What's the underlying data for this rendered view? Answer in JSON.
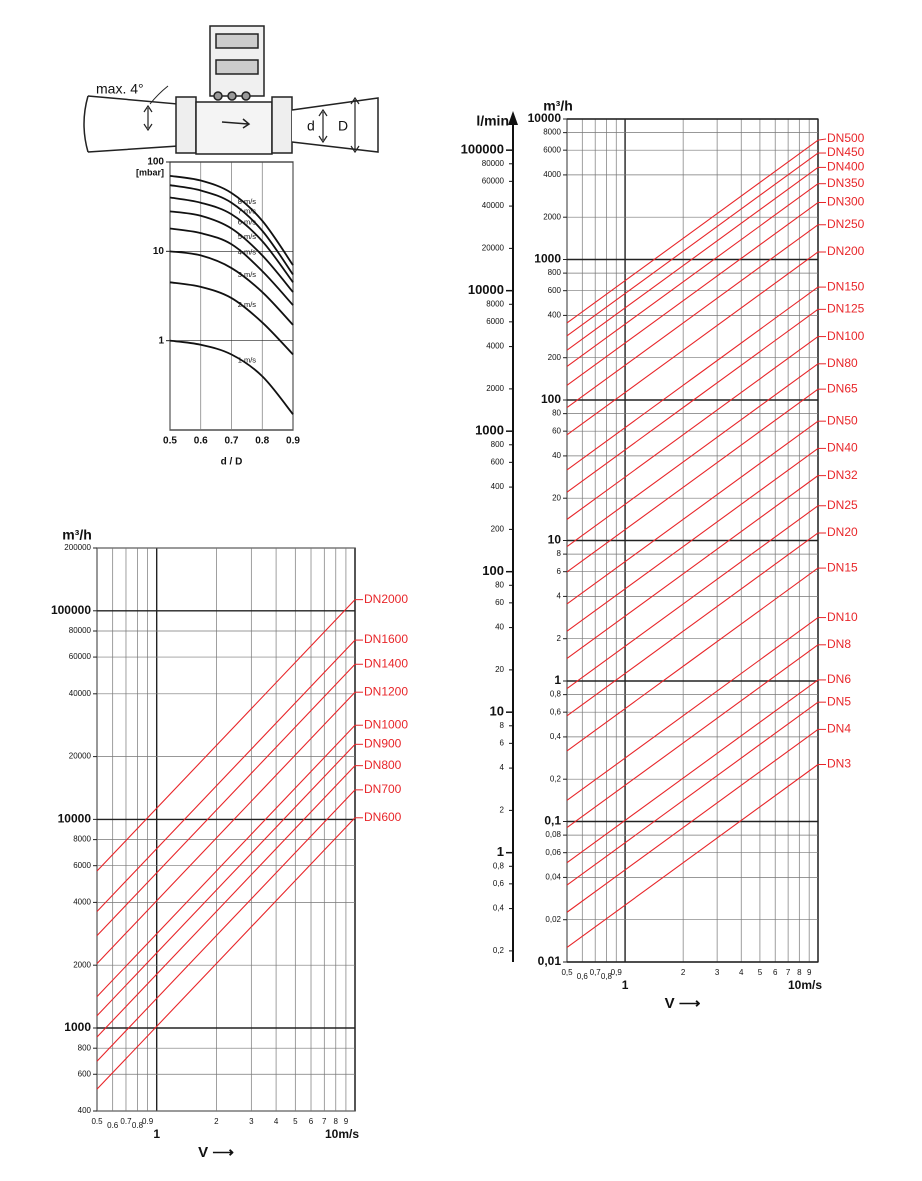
{
  "diagram": {
    "angle_label": "max. 4°",
    "inner_diameter_label": "d",
    "outer_diameter_label": "D"
  },
  "chart_data": [
    {
      "type": "line",
      "ylabel": "[mbar]",
      "xlabel": "d / D",
      "log_y": true,
      "grid": true,
      "xlim": [
        0.5,
        0.9
      ],
      "xticks": [
        0.5,
        0.6,
        0.7,
        0.8,
        0.9
      ],
      "ylim": [
        0.1,
        100
      ],
      "yticks": [
        100,
        10,
        1
      ],
      "x": [
        0.5,
        0.6,
        0.7,
        0.8,
        0.9
      ],
      "series": [
        {
          "name": "8 m/s",
          "color": "#111111",
          "values": [
            70,
            62,
            45,
            22,
            7
          ]
        },
        {
          "name": "7 m/s",
          "color": "#111111",
          "values": [
            55,
            48,
            35,
            17,
            5.5
          ]
        },
        {
          "name": "6 m/s",
          "color": "#111111",
          "values": [
            40,
            35,
            26,
            13,
            4.5
          ]
        },
        {
          "name": "5 m/s",
          "color": "#111111",
          "values": [
            28,
            25,
            18,
            9,
            3.5
          ]
        },
        {
          "name": "4 m/s",
          "color": "#111111",
          "values": [
            18,
            16,
            12,
            6,
            2.5
          ]
        },
        {
          "name": "3 m/s",
          "color": "#111111",
          "values": [
            10,
            9,
            6.5,
            3.5,
            1.5
          ]
        },
        {
          "name": "2 m/s",
          "color": "#111111",
          "values": [
            4.5,
            4,
            3,
            1.6,
            0.7
          ]
        },
        {
          "name": "1 m/s",
          "color": "#111111",
          "values": [
            1,
            0.9,
            0.7,
            0.4,
            0.15
          ]
        }
      ]
    },
    {
      "type": "line",
      "ylabel": "m³/h",
      "xlabel": "V ⟶",
      "log_x": true,
      "log_y": true,
      "grid": true,
      "xlim": [
        0.5,
        10
      ],
      "xticks": [
        0.5,
        0.6,
        0.7,
        0.8,
        0.9,
        1,
        2,
        3,
        4,
        5,
        6,
        7,
        8,
        9,
        {
          "value": 10,
          "label": "10m/s"
        }
      ],
      "ylim": [
        400,
        200000
      ],
      "yticks": [
        200000,
        100000,
        80000,
        60000,
        40000,
        20000,
        10000,
        8000,
        6000,
        4000,
        2000,
        1000,
        800,
        600,
        400
      ],
      "x": [
        0.5,
        10
      ],
      "series": [
        {
          "name": "DN2000",
          "color": "#e8262a",
          "values": [
            5655,
            113097
          ]
        },
        {
          "name": "DN1600",
          "color": "#e8262a",
          "values": [
            3619,
            72382
          ]
        },
        {
          "name": "DN1400",
          "color": "#e8262a",
          "values": [
            2771,
            55418
          ]
        },
        {
          "name": "DN1200",
          "color": "#e8262a",
          "values": [
            2036,
            40715
          ]
        },
        {
          "name": "DN1000",
          "color": "#e8262a",
          "values": [
            1414,
            28274
          ]
        },
        {
          "name": "DN900",
          "color": "#e8262a",
          "values": [
            1145,
            22902
          ]
        },
        {
          "name": "DN800",
          "color": "#e8262a",
          "values": [
            905,
            18096
          ]
        },
        {
          "name": "DN700",
          "color": "#e8262a",
          "values": [
            693,
            13854
          ]
        },
        {
          "name": "DN600",
          "color": "#e8262a",
          "values": [
            509,
            10179
          ]
        }
      ]
    },
    {
      "type": "line",
      "ylabel": "m³/h",
      "y2label": "l/min",
      "xlabel": "V ⟶",
      "log_x": true,
      "log_y": true,
      "grid": true,
      "xlim": [
        0.5,
        10
      ],
      "xticks": [
        {
          "value": 0.5,
          "label": "0,5"
        },
        {
          "value": 0.6,
          "label": "0,6"
        },
        {
          "value": 0.7,
          "label": "0,7"
        },
        {
          "value": 0.8,
          "label": "0,8"
        },
        {
          "value": 0.9,
          "label": "0,9"
        },
        1,
        2,
        3,
        4,
        5,
        6,
        7,
        8,
        9,
        {
          "value": 10,
          "label": "10m/s"
        }
      ],
      "ylim": [
        0.01,
        10000
      ],
      "yticks": [
        10000,
        8000,
        6000,
        4000,
        2000,
        1000,
        800,
        600,
        400,
        200,
        100,
        80,
        60,
        40,
        20,
        10,
        8,
        6,
        4,
        2,
        1,
        {
          "value": 0.8,
          "label": "0,8"
        },
        {
          "value": 0.6,
          "label": "0,6"
        },
        {
          "value": 0.4,
          "label": "0,4"
        },
        {
          "value": 0.2,
          "label": "0,2"
        },
        {
          "value": 0.1,
          "label": "0,1"
        },
        {
          "value": 0.08,
          "label": "0,08"
        },
        {
          "value": 0.06,
          "label": "0,06"
        },
        {
          "value": 0.04,
          "label": "0,04"
        },
        {
          "value": 0.02,
          "label": "0,02"
        },
        {
          "value": 0.01,
          "label": "0,01"
        }
      ],
      "y2lim": [
        0.1667,
        166667
      ],
      "y2ticks": [
        100000,
        80000,
        60000,
        40000,
        20000,
        10000,
        8000,
        6000,
        4000,
        2000,
        1000,
        800,
        600,
        400,
        200,
        100,
        80,
        60,
        40,
        20,
        10,
        8,
        6,
        4,
        2,
        1,
        {
          "value": 0.8,
          "label": "0,8"
        },
        {
          "value": 0.6,
          "label": "0,6"
        },
        {
          "value": 0.4,
          "label": "0,4"
        },
        {
          "value": 0.2,
          "label": "0,2"
        }
      ],
      "x": [
        0.5,
        10
      ],
      "series": [
        {
          "name": "DN500",
          "color": "#e8262a",
          "values": [
            353.43,
            7068.6
          ]
        },
        {
          "name": "DN450",
          "color": "#e8262a",
          "values": [
            286.28,
            5725.6
          ]
        },
        {
          "name": "DN400",
          "color": "#e8262a",
          "values": [
            226.19,
            4523.9
          ]
        },
        {
          "name": "DN350",
          "color": "#e8262a",
          "values": [
            173.18,
            3463.6
          ]
        },
        {
          "name": "DN300",
          "color": "#e8262a",
          "values": [
            127.23,
            2544.7
          ]
        },
        {
          "name": "DN250",
          "color": "#e8262a",
          "values": [
            88.36,
            1767.1
          ]
        },
        {
          "name": "DN200",
          "color": "#e8262a",
          "values": [
            56.55,
            1131
          ]
        },
        {
          "name": "DN150",
          "color": "#e8262a",
          "values": [
            31.809,
            636.17
          ]
        },
        {
          "name": "DN125",
          "color": "#e8262a",
          "values": [
            22.089,
            441.79
          ]
        },
        {
          "name": "DN100",
          "color": "#e8262a",
          "values": [
            14.137,
            282.74
          ]
        },
        {
          "name": "DN80",
          "color": "#e8262a",
          "values": [
            9.048,
            180.96
          ]
        },
        {
          "name": "DN65",
          "color": "#e8262a",
          "values": [
            5.973,
            119.46
          ]
        },
        {
          "name": "DN50",
          "color": "#e8262a",
          "values": [
            3.534,
            70.686
          ]
        },
        {
          "name": "DN40",
          "color": "#e8262a",
          "values": [
            2.262,
            45.239
          ]
        },
        {
          "name": "DN32",
          "color": "#e8262a",
          "values": [
            1.4476,
            28.953
          ]
        },
        {
          "name": "DN25",
          "color": "#e8262a",
          "values": [
            0.8836,
            17.671
          ]
        },
        {
          "name": "DN20",
          "color": "#e8262a",
          "values": [
            0.5655,
            11.31
          ]
        },
        {
          "name": "DN15",
          "color": "#e8262a",
          "values": [
            0.3181,
            6.3617
          ]
        },
        {
          "name": "DN10",
          "color": "#e8262a",
          "values": [
            0.1414,
            2.8274
          ]
        },
        {
          "name": "DN8",
          "color": "#e8262a",
          "values": [
            0.0905,
            1.8096
          ]
        },
        {
          "name": "DN6",
          "color": "#e8262a",
          "values": [
            0.0509,
            1.0179
          ]
        },
        {
          "name": "DN5",
          "color": "#e8262a",
          "values": [
            0.0353,
            0.7069
          ]
        },
        {
          "name": "DN4",
          "color": "#e8262a",
          "values": [
            0.0226,
            0.4524
          ]
        },
        {
          "name": "DN3",
          "color": "#e8262a",
          "values": [
            0.0127,
            0.2545
          ]
        }
      ]
    }
  ]
}
